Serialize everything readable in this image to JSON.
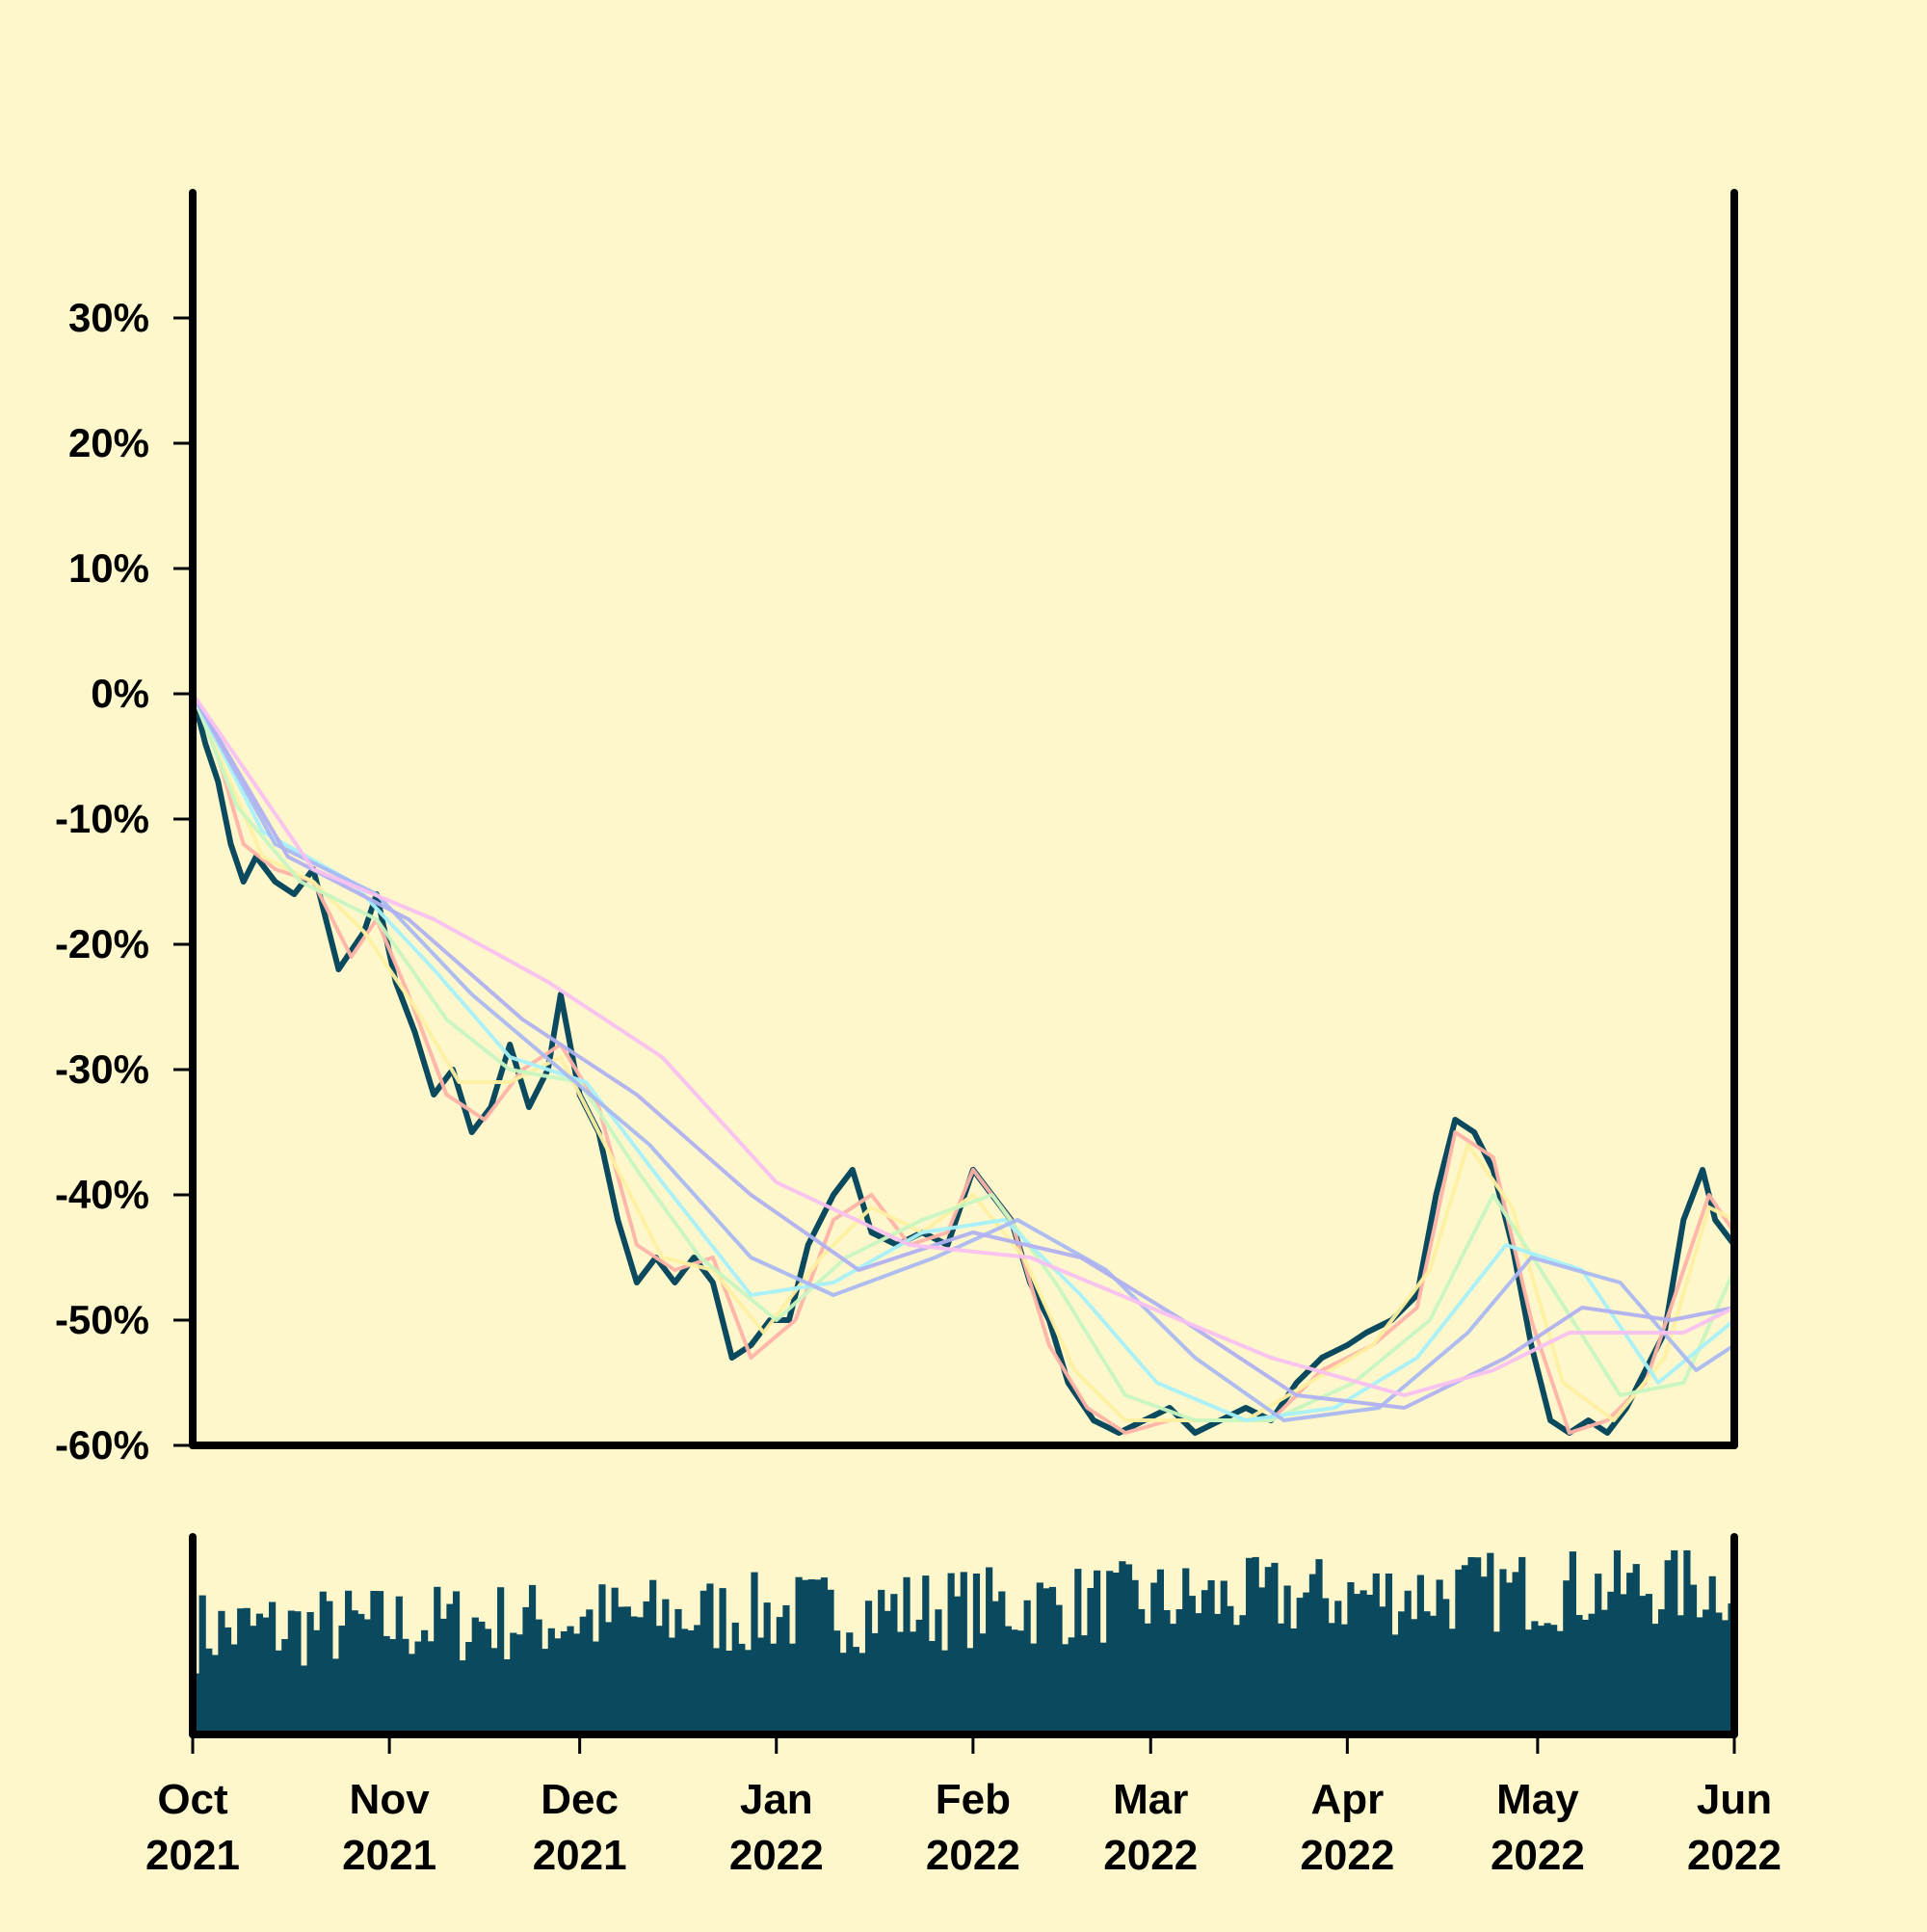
{
  "chart_data": {
    "type": "line",
    "title": "",
    "xlabel": "",
    "ylabel": "",
    "background_color": "#fff7cc",
    "price_color": "#0b4a5e",
    "volume_color": "#0b4a5e",
    "ylim": [
      -60,
      40
    ],
    "yticks": [
      {
        "value": 30,
        "label": "30%"
      },
      {
        "value": 20,
        "label": "20%"
      },
      {
        "value": 10,
        "label": "10%"
      },
      {
        "value": 0,
        "label": "0%"
      },
      {
        "value": -10,
        "label": "-10%"
      },
      {
        "value": -20,
        "label": "-20%"
      },
      {
        "value": -30,
        "label": "-30%"
      },
      {
        "value": -40,
        "label": "-40%"
      },
      {
        "value": -50,
        "label": "-50%"
      },
      {
        "value": -60,
        "label": "-60%"
      }
    ],
    "xlim": [
      "2021-10-01",
      "2022-06-01"
    ],
    "xticks": [
      {
        "date": "2021-10-01",
        "month": "Oct",
        "year": "2021"
      },
      {
        "date": "2021-11-01",
        "month": "Nov",
        "year": "2021"
      },
      {
        "date": "2021-12-01",
        "month": "Dec",
        "year": "2021"
      },
      {
        "date": "2022-01-01",
        "month": "Jan",
        "year": "2022"
      },
      {
        "date": "2022-02-01",
        "month": "Feb",
        "year": "2022"
      },
      {
        "date": "2022-03-01",
        "month": "Mar",
        "year": "2022"
      },
      {
        "date": "2022-04-01",
        "month": "Apr",
        "year": "2022"
      },
      {
        "date": "2022-05-01",
        "month": "May",
        "year": "2022"
      },
      {
        "date": "2022-06-01",
        "month": "Jun",
        "year": "2022"
      }
    ],
    "series": [
      {
        "role": "price",
        "color": "#0b4a5e",
        "points": [
          [
            "2021-10-01",
            0
          ],
          [
            "2021-10-03",
            -4
          ],
          [
            "2021-10-05",
            -7
          ],
          [
            "2021-10-07",
            -12
          ],
          [
            "2021-10-09",
            -15
          ],
          [
            "2021-10-11",
            -13
          ],
          [
            "2021-10-14",
            -15
          ],
          [
            "2021-10-17",
            -16
          ],
          [
            "2021-10-20",
            -14
          ],
          [
            "2021-10-24",
            -22
          ],
          [
            "2021-10-28",
            -19
          ],
          [
            "2021-10-30",
            -16
          ],
          [
            "2021-11-02",
            -23
          ],
          [
            "2021-11-05",
            -27
          ],
          [
            "2021-11-08",
            -32
          ],
          [
            "2021-11-11",
            -30
          ],
          [
            "2021-11-14",
            -35
          ],
          [
            "2021-11-17",
            -33
          ],
          [
            "2021-11-20",
            -28
          ],
          [
            "2021-11-23",
            -33
          ],
          [
            "2021-11-26",
            -30
          ],
          [
            "2021-11-28",
            -24
          ],
          [
            "2021-12-01",
            -32
          ],
          [
            "2021-12-04",
            -35
          ],
          [
            "2021-12-07",
            -42
          ],
          [
            "2021-12-10",
            -47
          ],
          [
            "2021-12-13",
            -45
          ],
          [
            "2021-12-16",
            -47
          ],
          [
            "2021-12-19",
            -45
          ],
          [
            "2021-12-22",
            -47
          ],
          [
            "2021-12-25",
            -53
          ],
          [
            "2021-12-28",
            -52
          ],
          [
            "2021-12-31",
            -50
          ],
          [
            "2022-01-03",
            -50
          ],
          [
            "2022-01-06",
            -44
          ],
          [
            "2022-01-10",
            -40
          ],
          [
            "2022-01-13",
            -38
          ],
          [
            "2022-01-16",
            -43
          ],
          [
            "2022-01-20",
            -44
          ],
          [
            "2022-01-24",
            -43
          ],
          [
            "2022-01-28",
            -44
          ],
          [
            "2022-02-01",
            -38
          ],
          [
            "2022-02-04",
            -40
          ],
          [
            "2022-02-07",
            -42
          ],
          [
            "2022-02-10",
            -47
          ],
          [
            "2022-02-13",
            -50
          ],
          [
            "2022-02-16",
            -55
          ],
          [
            "2022-02-20",
            -58
          ],
          [
            "2022-02-24",
            -59
          ],
          [
            "2022-02-28",
            -58
          ],
          [
            "2022-03-04",
            -57
          ],
          [
            "2022-03-08",
            -59
          ],
          [
            "2022-03-12",
            -58
          ],
          [
            "2022-03-16",
            -57
          ],
          [
            "2022-03-20",
            -58
          ],
          [
            "2022-03-24",
            -55
          ],
          [
            "2022-03-28",
            -53
          ],
          [
            "2022-04-01",
            -52
          ],
          [
            "2022-04-04",
            -51
          ],
          [
            "2022-04-08",
            -50
          ],
          [
            "2022-04-12",
            -48
          ],
          [
            "2022-04-15",
            -40
          ],
          [
            "2022-04-18",
            -34
          ],
          [
            "2022-04-21",
            -35
          ],
          [
            "2022-04-24",
            -38
          ],
          [
            "2022-04-27",
            -44
          ],
          [
            "2022-04-30",
            -52
          ],
          [
            "2022-05-03",
            -58
          ],
          [
            "2022-05-06",
            -59
          ],
          [
            "2022-05-09",
            -58
          ],
          [
            "2022-05-12",
            -59
          ],
          [
            "2022-05-15",
            -57
          ],
          [
            "2022-05-18",
            -54
          ],
          [
            "2022-05-21",
            -51
          ],
          [
            "2022-05-24",
            -42
          ],
          [
            "2022-05-27",
            -38
          ],
          [
            "2022-05-29",
            -42
          ],
          [
            "2022-06-01",
            -44
          ]
        ]
      },
      {
        "role": "moving-average",
        "color": "#ffb3a6",
        "points": [
          [
            "2021-10-01",
            0
          ],
          [
            "2021-10-05",
            -5
          ],
          [
            "2021-10-09",
            -12
          ],
          [
            "2021-10-14",
            -14
          ],
          [
            "2021-10-20",
            -15
          ],
          [
            "2021-10-26",
            -21
          ],
          [
            "2021-10-30",
            -18
          ],
          [
            "2021-11-04",
            -24
          ],
          [
            "2021-11-10",
            -32
          ],
          [
            "2021-11-16",
            -34
          ],
          [
            "2021-11-22",
            -30
          ],
          [
            "2021-11-28",
            -28
          ],
          [
            "2021-12-04",
            -33
          ],
          [
            "2021-12-10",
            -44
          ],
          [
            "2021-12-16",
            -46
          ],
          [
            "2021-12-22",
            -45
          ],
          [
            "2021-12-28",
            -53
          ],
          [
            "2022-01-04",
            -50
          ],
          [
            "2022-01-10",
            -42
          ],
          [
            "2022-01-16",
            -40
          ],
          [
            "2022-01-22",
            -44
          ],
          [
            "2022-01-28",
            -43
          ],
          [
            "2022-02-01",
            -38
          ],
          [
            "2022-02-07",
            -42
          ],
          [
            "2022-02-13",
            -52
          ],
          [
            "2022-02-19",
            -57
          ],
          [
            "2022-02-25",
            -59
          ],
          [
            "2022-03-04",
            -58
          ],
          [
            "2022-03-12",
            -58
          ],
          [
            "2022-03-20",
            -58
          ],
          [
            "2022-03-28",
            -54
          ],
          [
            "2022-04-05",
            -52
          ],
          [
            "2022-04-12",
            -49
          ],
          [
            "2022-04-18",
            -35
          ],
          [
            "2022-04-24",
            -37
          ],
          [
            "2022-04-30",
            -50
          ],
          [
            "2022-05-06",
            -59
          ],
          [
            "2022-05-12",
            -58
          ],
          [
            "2022-05-18",
            -55
          ],
          [
            "2022-05-24",
            -46
          ],
          [
            "2022-05-28",
            -40
          ],
          [
            "2022-06-01",
            -43
          ]
        ]
      },
      {
        "role": "moving-average",
        "color": "#fff0a0",
        "points": [
          [
            "2021-10-01",
            0
          ],
          [
            "2021-10-06",
            -6
          ],
          [
            "2021-10-12",
            -13
          ],
          [
            "2021-10-20",
            -15
          ],
          [
            "2021-10-28",
            -19
          ],
          [
            "2021-11-05",
            -25
          ],
          [
            "2021-11-12",
            -31
          ],
          [
            "2021-11-20",
            -31
          ],
          [
            "2021-11-28",
            -29
          ],
          [
            "2021-12-06",
            -37
          ],
          [
            "2021-12-14",
            -45
          ],
          [
            "2021-12-22",
            -46
          ],
          [
            "2021-12-30",
            -51
          ],
          [
            "2022-01-08",
            -45
          ],
          [
            "2022-01-16",
            -41
          ],
          [
            "2022-01-24",
            -43
          ],
          [
            "2022-02-01",
            -40
          ],
          [
            "2022-02-09",
            -45
          ],
          [
            "2022-02-17",
            -54
          ],
          [
            "2022-02-25",
            -58
          ],
          [
            "2022-03-06",
            -58
          ],
          [
            "2022-03-16",
            -58
          ],
          [
            "2022-03-26",
            -55
          ],
          [
            "2022-04-05",
            -52
          ],
          [
            "2022-04-14",
            -46
          ],
          [
            "2022-04-20",
            -36
          ],
          [
            "2022-04-27",
            -41
          ],
          [
            "2022-05-05",
            -55
          ],
          [
            "2022-05-13",
            -58
          ],
          [
            "2022-05-21",
            -53
          ],
          [
            "2022-05-28",
            -41
          ],
          [
            "2022-06-01",
            -42
          ]
        ]
      },
      {
        "role": "moving-average",
        "color": "#c8f5c0",
        "points": [
          [
            "2021-10-01",
            0
          ],
          [
            "2021-10-08",
            -9
          ],
          [
            "2021-10-18",
            -15
          ],
          [
            "2021-10-30",
            -18
          ],
          [
            "2021-11-10",
            -26
          ],
          [
            "2021-11-20",
            -30
          ],
          [
            "2021-12-01",
            -31
          ],
          [
            "2021-12-10",
            -38
          ],
          [
            "2021-12-20",
            -45
          ],
          [
            "2022-01-01",
            -50
          ],
          [
            "2022-01-12",
            -45
          ],
          [
            "2022-01-24",
            -42
          ],
          [
            "2022-02-04",
            -40
          ],
          [
            "2022-02-14",
            -47
          ],
          [
            "2022-02-25",
            -56
          ],
          [
            "2022-03-08",
            -58
          ],
          [
            "2022-03-20",
            -58
          ],
          [
            "2022-04-02",
            -55
          ],
          [
            "2022-04-14",
            -50
          ],
          [
            "2022-04-24",
            -40
          ],
          [
            "2022-05-04",
            -48
          ],
          [
            "2022-05-14",
            -56
          ],
          [
            "2022-05-24",
            -55
          ],
          [
            "2022-06-01",
            -46
          ]
        ]
      },
      {
        "role": "moving-average",
        "color": "#a8f0f8",
        "points": [
          [
            "2021-10-01",
            0
          ],
          [
            "2021-10-12",
            -11
          ],
          [
            "2021-10-26",
            -15
          ],
          [
            "2021-11-08",
            -22
          ],
          [
            "2021-11-20",
            -29
          ],
          [
            "2021-12-02",
            -31
          ],
          [
            "2021-12-14",
            -39
          ],
          [
            "2021-12-28",
            -48
          ],
          [
            "2022-01-10",
            -47
          ],
          [
            "2022-01-24",
            -43
          ],
          [
            "2022-02-06",
            -42
          ],
          [
            "2022-02-18",
            -48
          ],
          [
            "2022-03-02",
            -55
          ],
          [
            "2022-03-16",
            -58
          ],
          [
            "2022-03-30",
            -57
          ],
          [
            "2022-04-12",
            -53
          ],
          [
            "2022-04-26",
            -44
          ],
          [
            "2022-05-08",
            -46
          ],
          [
            "2022-05-20",
            -55
          ],
          [
            "2022-06-01",
            -50
          ]
        ]
      },
      {
        "role": "moving-average",
        "color": "#aab8f0",
        "points": [
          [
            "2021-10-01",
            0
          ],
          [
            "2021-10-14",
            -12
          ],
          [
            "2021-10-30",
            -16
          ],
          [
            "2021-11-14",
            -24
          ],
          [
            "2021-11-28",
            -30
          ],
          [
            "2021-12-12",
            -36
          ],
          [
            "2021-12-28",
            -45
          ],
          [
            "2022-01-10",
            -48
          ],
          [
            "2022-01-26",
            -45
          ],
          [
            "2022-02-08",
            -42
          ],
          [
            "2022-02-22",
            -46
          ],
          [
            "2022-03-08",
            -53
          ],
          [
            "2022-03-22",
            -58
          ],
          [
            "2022-04-06",
            -57
          ],
          [
            "2022-04-20",
            -51
          ],
          [
            "2022-04-30",
            -45
          ],
          [
            "2022-05-14",
            -47
          ],
          [
            "2022-05-26",
            -54
          ],
          [
            "2022-06-01",
            -52
          ]
        ]
      },
      {
        "role": "moving-average",
        "color": "#b0b0f0",
        "points": [
          [
            "2021-10-01",
            0
          ],
          [
            "2021-10-16",
            -13
          ],
          [
            "2021-11-04",
            -18
          ],
          [
            "2021-11-22",
            -26
          ],
          [
            "2021-12-10",
            -32
          ],
          [
            "2021-12-28",
            -40
          ],
          [
            "2022-01-14",
            -46
          ],
          [
            "2022-02-01",
            -43
          ],
          [
            "2022-02-18",
            -45
          ],
          [
            "2022-03-06",
            -50
          ],
          [
            "2022-03-24",
            -56
          ],
          [
            "2022-04-10",
            -57
          ],
          [
            "2022-04-26",
            -53
          ],
          [
            "2022-05-08",
            -49
          ],
          [
            "2022-05-22",
            -50
          ],
          [
            "2022-06-01",
            -49
          ]
        ]
      },
      {
        "role": "moving-average",
        "color": "#f8c0f0",
        "points": [
          [
            "2021-10-01",
            0
          ],
          [
            "2021-10-20",
            -14
          ],
          [
            "2021-11-08",
            -18
          ],
          [
            "2021-11-26",
            -23
          ],
          [
            "2021-12-14",
            -29
          ],
          [
            "2022-01-01",
            -39
          ],
          [
            "2022-01-22",
            -44
          ],
          [
            "2022-02-10",
            -45
          ],
          [
            "2022-03-01",
            -49
          ],
          [
            "2022-03-20",
            -53
          ],
          [
            "2022-04-10",
            -56
          ],
          [
            "2022-04-24",
            -54
          ],
          [
            "2022-05-06",
            -51
          ],
          [
            "2022-05-24",
            -51
          ],
          [
            "2022-06-01",
            -49
          ]
        ]
      }
    ],
    "volume": {
      "color": "#0b4a5e",
      "relative_range": [
        0,
        1
      ],
      "seed": 7
    }
  }
}
